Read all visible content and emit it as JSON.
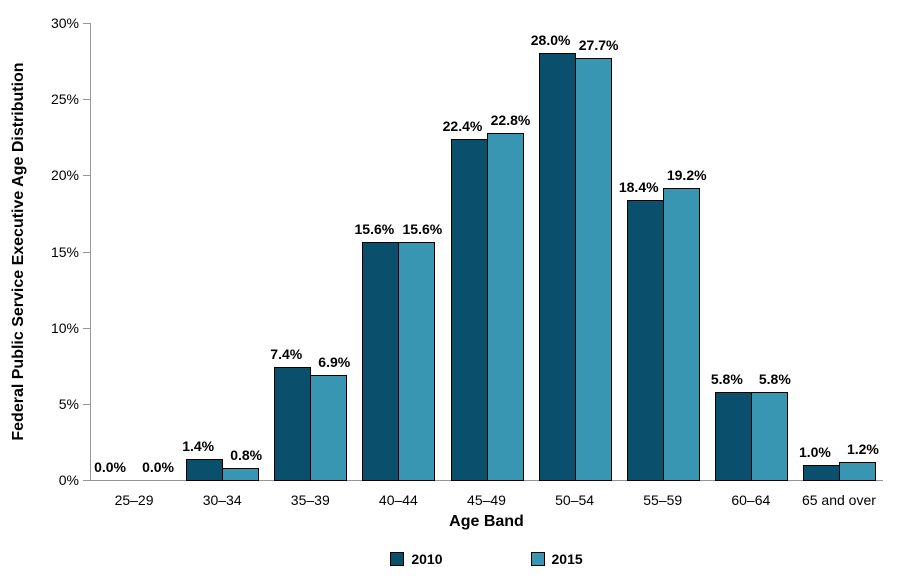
{
  "chart_data": {
    "type": "bar",
    "xlabel": "Age Band",
    "ylabel": "Federal Public Service Executive Age Distribution",
    "categories": [
      "25–29",
      "30–34",
      "35–39",
      "40–44",
      "45–49",
      "50–54",
      "55–59",
      "60–64",
      "65 and over"
    ],
    "series": [
      {
        "name": "2010",
        "color": "#0A506C",
        "values": [
          0.0,
          1.4,
          7.4,
          15.6,
          22.4,
          28.0,
          18.4,
          5.8,
          1.0
        ]
      },
      {
        "name": "2015",
        "color": "#3996B3",
        "values": [
          0.0,
          0.8,
          6.9,
          15.6,
          22.8,
          27.7,
          19.2,
          5.8,
          1.2
        ]
      }
    ],
    "data_labels": [
      [
        "0.0%",
        "1.4%",
        "7.4%",
        "15.6%",
        "22.4%",
        "28.0%",
        "18.4%",
        "5.8%",
        "1.0%"
      ],
      [
        "0.0%",
        "0.8%",
        "6.9%",
        "15.6%",
        "22.8%",
        "27.7%",
        "19.2%",
        "5.8%",
        "1.2%"
      ]
    ],
    "ylim": [
      0,
      30
    ],
    "ytick_step": 5,
    "ytick_labels": [
      "0%",
      "5%",
      "10%",
      "15%",
      "20%",
      "25%",
      "30%"
    ],
    "grid": false,
    "legend_position": "bottom",
    "bar_outline_color": "#000000",
    "axis_color": "#969696",
    "text_color": "#000000"
  }
}
